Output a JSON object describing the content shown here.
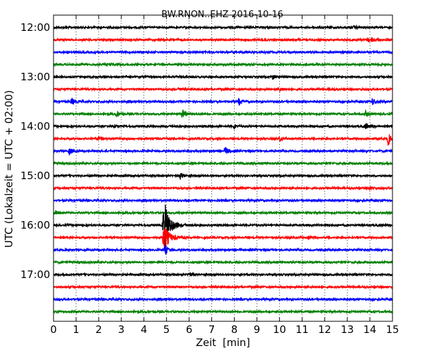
{
  "chart_data": {
    "type": "line",
    "title": "BW.RNON..EHZ 2016-10-16",
    "xlabel": "Zeit  [min]",
    "ylabel": "UTC (Lokalzeit = UTC + 02:00)",
    "xlim": [
      0,
      15
    ],
    "x_ticks": [
      "0",
      "1",
      "2",
      "3",
      "4",
      "5",
      "6",
      "7",
      "8",
      "9",
      "10",
      "11",
      "12",
      "13",
      "14",
      "15"
    ],
    "y_ticks": [
      "12:00",
      "13:00",
      "14:00",
      "15:00",
      "16:00",
      "17:00"
    ],
    "grid": "vertical dotted at each minute",
    "trace_colors": [
      "#000000",
      "#ff0000",
      "#0000ff",
      "#008000"
    ],
    "traces": [
      {
        "start": "12:00",
        "events": [
          {
            "t": 13.3,
            "amp": 2
          }
        ]
      },
      {
        "start": "12:15",
        "events": [
          {
            "t": 13.9,
            "amp": 3
          },
          {
            "t": 14.1,
            "amp": 3
          }
        ]
      },
      {
        "start": "12:30",
        "events": [
          {
            "t": 12.8,
            "amp": 2
          }
        ]
      },
      {
        "start": "12:45",
        "events": [
          {
            "t": 1.2,
            "amp": 2
          },
          {
            "t": 2.5,
            "amp": 2
          }
        ]
      },
      {
        "start": "13:00",
        "events": [
          {
            "t": 9.7,
            "amp": 3
          }
        ]
      },
      {
        "start": "13:15",
        "events": [
          {
            "t": 5.5,
            "amp": 2
          },
          {
            "t": 10.0,
            "amp": 2
          },
          {
            "t": 12.2,
            "amp": 2
          }
        ]
      },
      {
        "start": "13:30",
        "events": [
          {
            "t": 0.8,
            "amp": 5
          },
          {
            "t": 8.2,
            "amp": 5
          },
          {
            "t": 14.1,
            "amp": 5
          }
        ]
      },
      {
        "start": "13:45",
        "events": [
          {
            "t": 2.8,
            "amp": 5
          },
          {
            "t": 5.7,
            "amp": 7
          },
          {
            "t": 13.8,
            "amp": 4
          }
        ]
      },
      {
        "start": "14:00",
        "events": [
          {
            "t": 2.7,
            "amp": 3
          },
          {
            "t": 8.0,
            "amp": 3
          },
          {
            "t": 13.8,
            "amp": 4
          }
        ]
      },
      {
        "start": "14:15",
        "events": [
          {
            "t": 2.0,
            "amp": 3
          },
          {
            "t": 10.0,
            "amp": 3
          },
          {
            "t": 14.8,
            "amp": 9
          }
        ]
      },
      {
        "start": "14:30",
        "events": [
          {
            "t": 0.7,
            "amp": 5
          },
          {
            "t": 7.6,
            "amp": 6
          }
        ]
      },
      {
        "start": "14:45",
        "events": []
      },
      {
        "start": "15:00",
        "events": [
          {
            "t": 5.6,
            "amp": 5
          }
        ]
      },
      {
        "start": "15:15",
        "events": [
          {
            "t": 14.0,
            "amp": 2
          }
        ]
      },
      {
        "start": "15:30",
        "events": []
      },
      {
        "start": "15:45",
        "events": [
          {
            "t": 0.1,
            "amp": 3
          }
        ]
      },
      {
        "start": "16:00",
        "events": [
          {
            "t": 4.9,
            "amp": 36
          }
        ]
      },
      {
        "start": "16:15",
        "events": [
          {
            "t": 4.9,
            "amp": 18
          },
          {
            "t": 11.3,
            "amp": 2
          }
        ]
      },
      {
        "start": "16:30",
        "events": [
          {
            "t": 4.95,
            "amp": 6
          }
        ]
      },
      {
        "start": "16:45",
        "events": []
      },
      {
        "start": "17:00",
        "events": [
          {
            "t": 6.0,
            "amp": 3
          }
        ]
      },
      {
        "start": "17:15",
        "events": []
      },
      {
        "start": "17:30",
        "events": []
      },
      {
        "start": "17:45",
        "events": []
      }
    ]
  }
}
